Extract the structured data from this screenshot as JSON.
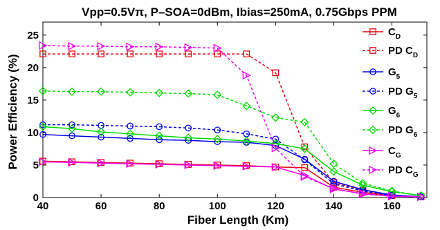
{
  "chart_data": {
    "type": "line",
    "title": "Vpp=0.5Vπ, P–SOA=0dBm, Ibias=250mA, 0.75Gbps PPM",
    "xlabel": "Fiber Length (Km)",
    "ylabel": "Power Efficiency (%)",
    "xlim": [
      40,
      172
    ],
    "ylim": [
      0,
      27
    ],
    "xticks": [
      40,
      60,
      80,
      100,
      120,
      140,
      160
    ],
    "yticks": [
      0,
      5,
      10,
      15,
      20,
      25
    ],
    "grid": false,
    "legend_position": "right",
    "x": [
      40,
      50,
      60,
      70,
      80,
      90,
      100,
      110,
      120,
      130,
      140,
      150,
      160,
      170
    ],
    "series": [
      {
        "name": "C",
        "subscript": "D",
        "color": "#e8000b",
        "dash": "solid",
        "marker": "square",
        "values": [
          5.6,
          5.5,
          5.4,
          5.3,
          5.2,
          5.1,
          5.0,
          4.9,
          4.7,
          4.6,
          1.6,
          0.8,
          0.3,
          0.1
        ]
      },
      {
        "name": "PD C",
        "subscript": "D",
        "color": "#e8000b",
        "dash": "dashed",
        "marker": "square",
        "values": [
          22.1,
          22.1,
          22.1,
          22.1,
          22.1,
          22.1,
          22.1,
          22.1,
          19.2,
          7.8,
          2.3,
          1.1,
          0.4,
          0.1
        ]
      },
      {
        "name": "G",
        "subscript": "5",
        "color": "#0000ee",
        "dash": "solid",
        "marker": "circle",
        "values": [
          9.7,
          9.5,
          9.3,
          9.1,
          8.9,
          8.8,
          8.6,
          8.5,
          8.0,
          5.9,
          2.5,
          1.2,
          0.4,
          0.1
        ]
      },
      {
        "name": "PD G",
        "subscript": "5",
        "color": "#0000ee",
        "dash": "dashed",
        "marker": "circle",
        "values": [
          11.2,
          11.2,
          11.1,
          11.0,
          10.9,
          10.7,
          10.4,
          9.8,
          9.0,
          5.8,
          2.1,
          1.0,
          0.3,
          0.1
        ]
      },
      {
        "name": "G",
        "subscript": "6",
        "color": "#00dd00",
        "dash": "solid",
        "marker": "diamond",
        "values": [
          10.9,
          10.6,
          10.1,
          9.8,
          9.5,
          9.2,
          9.0,
          8.7,
          8.3,
          7.5,
          4.0,
          1.9,
          0.9,
          0.3
        ]
      },
      {
        "name": "PD G",
        "subscript": "6",
        "color": "#00dd00",
        "dash": "dashed",
        "marker": "diamond",
        "values": [
          16.4,
          16.3,
          16.3,
          16.2,
          16.1,
          16.0,
          15.8,
          14.1,
          12.3,
          11.6,
          5.2,
          2.2,
          1.0,
          0.3
        ]
      },
      {
        "name": "C",
        "subscript": "G",
        "color": "#ee00ee",
        "dash": "solid",
        "marker": "triangle-right",
        "values": [
          5.5,
          5.4,
          5.3,
          5.2,
          5.1,
          5.0,
          4.9,
          4.8,
          4.7,
          3.4,
          1.3,
          0.6,
          0.2,
          0.1
        ]
      },
      {
        "name": "PD C",
        "subscript": "G",
        "color": "#ee00ee",
        "dash": "dashed",
        "marker": "triangle-right",
        "values": [
          23.4,
          23.3,
          23.3,
          23.2,
          23.2,
          23.1,
          23.0,
          18.8,
          7.6,
          3.2,
          1.4,
          0.5,
          0.2,
          0.1
        ]
      }
    ]
  }
}
